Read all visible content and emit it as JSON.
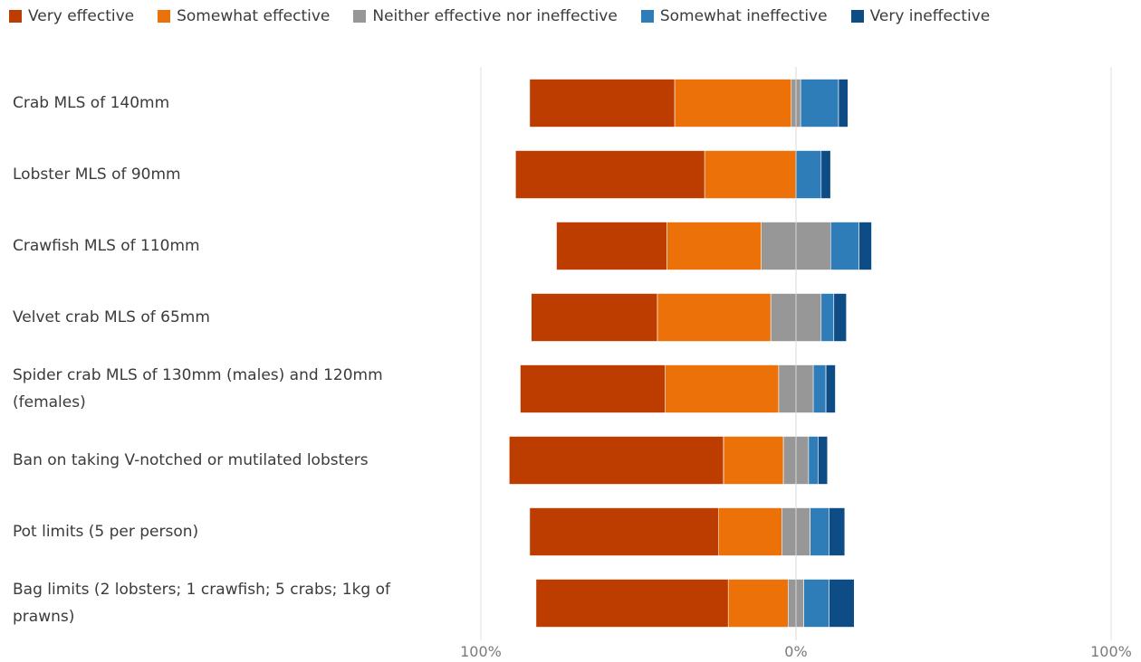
{
  "chart_data": {
    "type": "bar",
    "orientation": "horizontal",
    "stacked": "diverging",
    "categories": [
      "Crab MLS of 140mm",
      "Lobster MLS of 90mm",
      "Crawfish MLS of 110mm",
      "Velvet crab MLS of 65mm",
      "Spider crab MLS of 130mm (males) and 120mm (females)",
      "Ban on taking V-notched or mutilated lobsters",
      "Pot limits (5 per person)",
      "Bag limits (2 lobsters; 1 crawfish; 5 crabs; 1kg of prawns)"
    ],
    "series": [
      {
        "name": "Very effective",
        "color": "#bd3c00",
        "values": [
          46,
          60,
          35,
          40,
          46,
          68,
          60,
          61
        ]
      },
      {
        "name": "Somewhat effective",
        "color": "#ec7109",
        "values": [
          37,
          29,
          30,
          36,
          36,
          19,
          20,
          19
        ]
      },
      {
        "name": "Neither effective nor ineffective",
        "color": "#979797",
        "values": [
          3,
          0,
          22,
          16,
          11,
          8,
          9,
          5
        ]
      },
      {
        "name": "Somewhat ineffective",
        "color": "#2e7cb8",
        "values": [
          12,
          8,
          9,
          4,
          4,
          3,
          6,
          8
        ]
      },
      {
        "name": "Very ineffective",
        "color": "#0e4c85",
        "values": [
          3,
          3,
          4,
          4,
          3,
          3,
          5,
          8
        ]
      }
    ],
    "x_ticks": [
      "100%",
      "0%",
      "100%"
    ],
    "xlim": [
      -100,
      100
    ],
    "legend": "top-left",
    "grid": true
  }
}
